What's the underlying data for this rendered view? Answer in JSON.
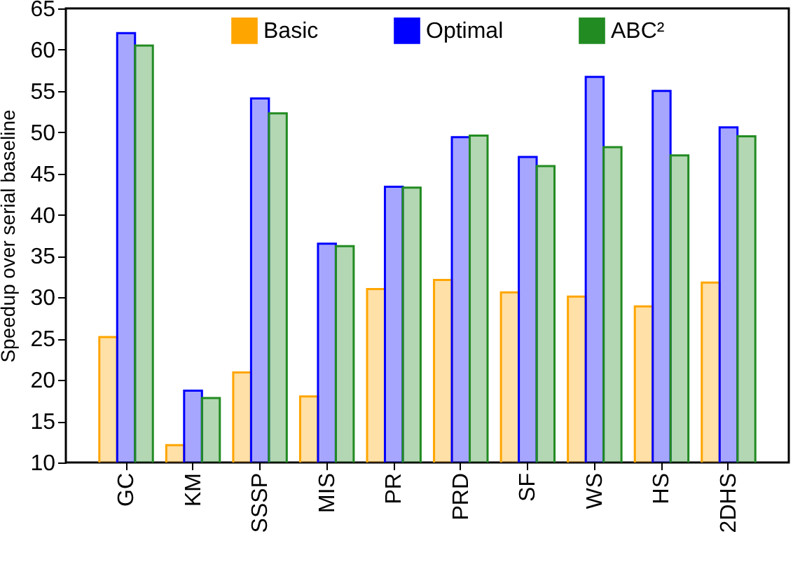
{
  "chart_data": {
    "type": "bar",
    "ylabel": "Speedup over serial baseline",
    "categories": [
      "GC",
      "KM",
      "SSSP",
      "MIS",
      "PR",
      "PRD",
      "SF",
      "WS",
      "HS",
      "2DHS"
    ],
    "series": [
      {
        "name": "Basic",
        "color": "#ffa500",
        "values": [
          25.2,
          12.1,
          20.9,
          18,
          31,
          32.1,
          30.6,
          30.1,
          28.9,
          31.8
        ]
      },
      {
        "name": "Optimal",
        "color": "#0000ff",
        "values": [
          62,
          18.7,
          54.1,
          36.5,
          43.4,
          49.4,
          47,
          56.7,
          55,
          50.6
        ]
      },
      {
        "name": "ABC²",
        "color": "#228b22",
        "values": [
          60.5,
          17.8,
          52.3,
          36.2,
          43.3,
          49.6,
          45.9,
          48.2,
          47.2,
          49.5
        ]
      }
    ],
    "ylim": [
      10,
      65
    ],
    "yticks": [
      10,
      15,
      20,
      25,
      30,
      35,
      40,
      45,
      50,
      55,
      60,
      65
    ],
    "grid": false,
    "legend": "top"
  }
}
